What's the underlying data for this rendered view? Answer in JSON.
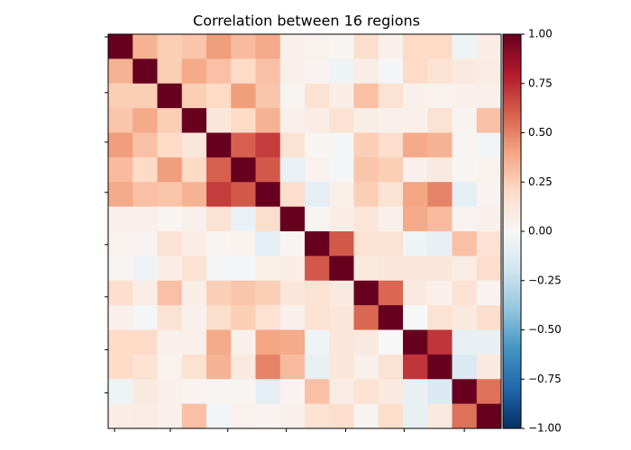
{
  "chart_data": {
    "type": "heatmap",
    "title": "Correlation between 16 regions",
    "colormap": "RdBu_r",
    "vmin": -1,
    "vmax": 1,
    "tick_labels": false,
    "values": [
      [
        1,
        0.35,
        0.25,
        0.28,
        0.42,
        0.32,
        0.38,
        0.05,
        0.04,
        0.02,
        0.18,
        0.05,
        0.2,
        0.2,
        -0.05,
        0.07
      ],
      [
        0.35,
        1,
        0.25,
        0.38,
        0.3,
        0.2,
        0.3,
        0.05,
        0.03,
        -0.05,
        0.07,
        -0.02,
        0.2,
        0.15,
        0.1,
        0.08
      ],
      [
        0.25,
        0.25,
        1,
        0.25,
        0.2,
        0.42,
        0.28,
        0.02,
        0.15,
        0.07,
        0.3,
        0.15,
        0.05,
        0.04,
        0.05,
        0.05
      ],
      [
        0.28,
        0.38,
        0.25,
        1,
        0.12,
        0.2,
        0.35,
        0.05,
        0.07,
        0.15,
        0.07,
        0.05,
        0.05,
        0.15,
        0.03,
        0.3
      ],
      [
        0.42,
        0.3,
        0.2,
        0.12,
        1,
        0.6,
        0.7,
        0.15,
        0.02,
        -0.02,
        0.25,
        0.18,
        0.38,
        0.35,
        0.02,
        -0.03
      ],
      [
        0.32,
        0.2,
        0.42,
        0.2,
        0.6,
        1,
        0.62,
        -0.07,
        0.04,
        -0.02,
        0.28,
        0.25,
        0.05,
        0.1,
        0.02,
        0.04
      ],
      [
        0.38,
        0.3,
        0.28,
        0.35,
        0.7,
        0.62,
        1,
        0.18,
        -0.1,
        0.06,
        0.25,
        0.15,
        0.4,
        0.5,
        -0.1,
        0.03
      ],
      [
        0.05,
        0.05,
        0.02,
        0.05,
        0.15,
        -0.07,
        0.18,
        1,
        0.02,
        0.07,
        0.12,
        0.05,
        0.38,
        0.32,
        0.03,
        0.05
      ],
      [
        0.04,
        0.03,
        0.15,
        0.07,
        0.02,
        0.04,
        -0.1,
        0.02,
        1,
        0.62,
        0.15,
        0.15,
        -0.05,
        -0.08,
        0.3,
        0.15
      ],
      [
        0.02,
        -0.05,
        0.07,
        0.15,
        -0.02,
        -0.02,
        0.06,
        0.07,
        0.62,
        1,
        0.1,
        0.12,
        0.12,
        0.12,
        0.08,
        0.18
      ],
      [
        0.18,
        0.07,
        0.3,
        0.07,
        0.25,
        0.28,
        0.25,
        0.12,
        0.15,
        0.1,
        1,
        0.58,
        0.1,
        0.05,
        0.15,
        0.03
      ],
      [
        0.05,
        -0.02,
        0.15,
        0.05,
        0.18,
        0.25,
        0.15,
        0.05,
        0.15,
        0.12,
        0.58,
        1,
        0,
        0.15,
        0.1,
        0.18
      ],
      [
        0.2,
        0.2,
        0.05,
        0.05,
        0.38,
        0.05,
        0.4,
        0.38,
        -0.05,
        0.12,
        0.1,
        0,
        1,
        0.72,
        -0.08,
        -0.08
      ],
      [
        0.2,
        0.15,
        0.04,
        0.15,
        0.35,
        0.1,
        0.5,
        0.32,
        -0.08,
        0.12,
        0.05,
        0.15,
        0.72,
        1,
        -0.15,
        0.1
      ],
      [
        -0.05,
        0.1,
        0.05,
        0.03,
        0.02,
        0.02,
        -0.1,
        0.03,
        0.3,
        0.08,
        0.15,
        0.1,
        -0.08,
        -0.15,
        1,
        0.55
      ],
      [
        0.07,
        0.08,
        0.05,
        0.3,
        -0.03,
        0.04,
        0.03,
        0.05,
        0.15,
        0.18,
        0.03,
        0.18,
        -0.08,
        0.1,
        0.55,
        1
      ]
    ],
    "xlim": [
      -0.5,
      15.5
    ],
    "ylim": [
      15.5,
      -0.5
    ],
    "xticks": [
      -0.24,
      2.03,
      4.37,
      6.75,
      9.17,
      11.55,
      14.0
    ],
    "yticks": [
      -0.39,
      1.87,
      3.88,
      5.92,
      8.04,
      10.16,
      12.31,
      14.06
    ],
    "colorbar_ticks": [
      {
        "value": 1,
        "label": "1.00"
      },
      {
        "value": 0.75,
        "label": "0.75"
      },
      {
        "value": 0.5,
        "label": "0.50"
      },
      {
        "value": 0.25,
        "label": "0.25"
      },
      {
        "value": 0,
        "label": "0.00"
      },
      {
        "value": -0.25,
        "label": "−0.25"
      },
      {
        "value": -0.5,
        "label": "−0.50"
      },
      {
        "value": -0.75,
        "label": "−0.75"
      },
      {
        "value": -1,
        "label": "−1.00"
      }
    ]
  }
}
